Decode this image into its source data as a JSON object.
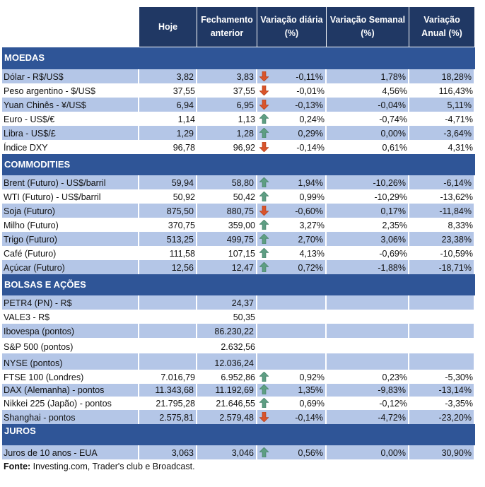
{
  "headers": [
    "Hoje",
    "Fechamento anterior",
    "Variação diária (%)",
    "Variação Semanal (%)",
    "Variação Anual (%)"
  ],
  "colors": {
    "header": "#203864",
    "section": "#2F5597",
    "stripe": "#B4C6E7",
    "up": "#5E9E83",
    "down": "#D9542B"
  },
  "sections": [
    {
      "title": "MOEDAS",
      "rows": [
        {
          "label": "Dólar - R$/US$",
          "hoje": "3,82",
          "fech": "3,83",
          "arrow": "down",
          "dia": "-0,11%",
          "sem": "1,78%",
          "ano": "18,28%"
        },
        {
          "label": "Peso argentino - $/US$",
          "hoje": "37,55",
          "fech": "37,55",
          "arrow": "down",
          "dia": "-0,01%",
          "sem": "4,56%",
          "ano": "116,43%"
        },
        {
          "label": "Yuan Chinês - ¥/US$",
          "hoje": "6,94",
          "fech": "6,95",
          "arrow": "down",
          "dia": "-0,13%",
          "sem": "-0,04%",
          "ano": "5,11%"
        },
        {
          "label": "Euro - US$/€",
          "hoje": "1,14",
          "fech": "1,13",
          "arrow": "up",
          "dia": "0,24%",
          "sem": "-0,74%",
          "ano": "-4,71%"
        },
        {
          "label": "Libra - US$/£",
          "hoje": "1,29",
          "fech": "1,28",
          "arrow": "up",
          "dia": "0,29%",
          "sem": "0,00%",
          "ano": "-3,64%"
        },
        {
          "label": "Índice DXY",
          "hoje": "96,78",
          "fech": "96,92",
          "arrow": "down",
          "dia": "-0,14%",
          "sem": "0,61%",
          "ano": "4,31%"
        }
      ]
    },
    {
      "title": "COMMODITIES",
      "rows": [
        {
          "label": "Brent (Futuro) - US$/barril",
          "hoje": "59,94",
          "fech": "58,80",
          "arrow": "up",
          "dia": "1,94%",
          "sem": "-10,26%",
          "ano": "-6,14%"
        },
        {
          "label": "WTI (Futuro) - US$/barril",
          "hoje": "50,92",
          "fech": "50,42",
          "arrow": "up",
          "dia": "0,99%",
          "sem": "-10,29%",
          "ano": "-13,62%"
        },
        {
          "label": "Soja (Futuro)",
          "hoje": "875,50",
          "fech": "880,75",
          "arrow": "down",
          "dia": "-0,60%",
          "sem": "0,17%",
          "ano": "-11,84%"
        },
        {
          "label": "Milho (Futuro)",
          "hoje": "370,75",
          "fech": "359,00",
          "arrow": "up",
          "dia": "3,27%",
          "sem": "2,35%",
          "ano": "8,33%"
        },
        {
          "label": "Trigo (Futuro)",
          "hoje": "513,25",
          "fech": "499,75",
          "arrow": "up",
          "dia": "2,70%",
          "sem": "3,06%",
          "ano": "23,38%"
        },
        {
          "label": "Café (Futuro)",
          "hoje": "111,58",
          "fech": "107,15",
          "arrow": "up",
          "dia": "4,13%",
          "sem": "-0,69%",
          "ano": "-10,59%"
        },
        {
          "label": "Açúcar (Futuro)",
          "hoje": "12,56",
          "fech": "12,47",
          "arrow": "up",
          "dia": "0,72%",
          "sem": "-1,88%",
          "ano": "-18,71%"
        }
      ]
    },
    {
      "title": "BOLSAS E AÇÕES",
      "rows": [
        {
          "label": "PETR4 (PN) - R$",
          "hoje": "",
          "fech": "24,37",
          "arrow": "",
          "dia": "",
          "sem": "",
          "ano": ""
        },
        {
          "label": "VALE3 - R$",
          "hoje": "",
          "fech": "50,35",
          "arrow": "",
          "dia": "",
          "sem": "",
          "ano": ""
        },
        {
          "label": "Ibovespa (pontos)",
          "hoje": "",
          "fech": "86.230,22",
          "arrow": "",
          "dia": "",
          "sem": "",
          "ano": ""
        },
        {
          "label": "S&P 500 (pontos)",
          "hoje": "",
          "fech": "2.632,56",
          "arrow": "",
          "dia": "",
          "sem": "",
          "ano": ""
        },
        {
          "label": "NYSE (pontos)",
          "hoje": "",
          "fech": "12.036,24",
          "arrow": "",
          "dia": "",
          "sem": "",
          "ano": ""
        },
        {
          "label": "FTSE 100 (Londres)",
          "hoje": "7.016,79",
          "fech": "6.952,86",
          "arrow": "up",
          "dia": "0,92%",
          "sem": "0,23%",
          "ano": "-5,30%"
        },
        {
          "label": "DAX (Alemanha) - pontos",
          "hoje": "11.343,68",
          "fech": "11.192,69",
          "arrow": "up",
          "dia": "1,35%",
          "sem": "-9,83%",
          "ano": "-13,14%"
        },
        {
          "label": "Nikkei 225 (Japão) - pontos",
          "hoje": "21.795,28",
          "fech": "21.646,55",
          "arrow": "up",
          "dia": "0,69%",
          "sem": "-0,12%",
          "ano": "-3,35%"
        },
        {
          "label": "Shanghai - pontos",
          "hoje": "2.575,81",
          "fech": "2.579,48",
          "arrow": "down",
          "dia": "-0,14%",
          "sem": "-4,72%",
          "ano": "-23,20%"
        }
      ]
    },
    {
      "title": "JUROS",
      "rows": [
        {
          "label": "Juros de 10 anos - EUA",
          "hoje": "3,063",
          "fech": "3,046",
          "arrow": "up",
          "dia": "0,56%",
          "sem": "0,00%",
          "ano": "30,90%"
        }
      ]
    }
  ],
  "footer": {
    "bold": "Fonte:",
    "text": " Investing.com, Trader's club e Broadcast."
  }
}
